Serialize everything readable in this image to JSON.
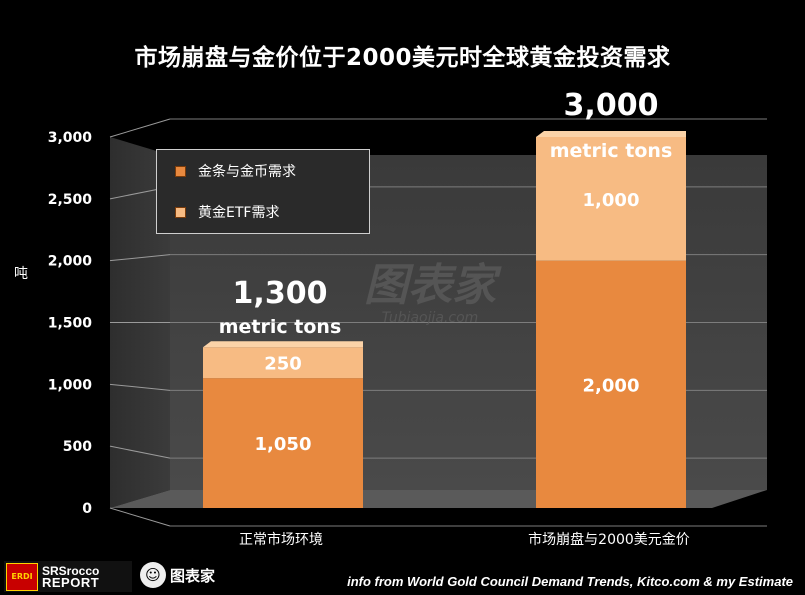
{
  "header": {
    "title": "市场崩盘与金价位于2000美元时全球黄金投资需求"
  },
  "legend": {
    "items": [
      {
        "label": "金条与金币需求",
        "color": "#e8893f"
      },
      {
        "label": "黄金ETF需求",
        "color": "#f7bb83"
      }
    ]
  },
  "watermark": {
    "main": "图表家",
    "sub": "Tubiaojia.com"
  },
  "footer": {
    "brand_badge": "ERDI",
    "brand_line1": "SRSrocco",
    "brand_line2": "REPORT",
    "logo_text": "图表家",
    "source": "info from World Gold Council Demand Trends, Kitco.com & my Estimate"
  },
  "chart_data": {
    "type": "bar",
    "stacked": true,
    "title": "市场崩盘与金价位于2000美元时全球黄金投资需求",
    "ylabel": "吨",
    "xlabel": "",
    "ylim": [
      0,
      3000
    ],
    "yticks": [
      0,
      500,
      1000,
      1500,
      2000,
      2500,
      3000
    ],
    "ytick_labels": [
      "0",
      "500",
      "1,000",
      "1,500",
      "2,000",
      "2,500",
      "3,000"
    ],
    "categories": [
      "正常市场环境",
      "市场崩盘与2000美元金价"
    ],
    "series": [
      {
        "name": "金条与金币需求",
        "values": [
          1050,
          2000
        ],
        "labels": [
          "1,050",
          "2,000"
        ],
        "color": "#e8893f"
      },
      {
        "name": "黄金ETF需求",
        "values": [
          250,
          1000
        ],
        "labels": [
          "250",
          "1,000"
        ],
        "color": "#f7bb83"
      }
    ],
    "totals": [
      {
        "value": "1,300",
        "unit": "metric tons"
      },
      {
        "value": "3,000",
        "unit": "metric tons"
      }
    ],
    "grid": true,
    "legend_position": "top-left"
  }
}
